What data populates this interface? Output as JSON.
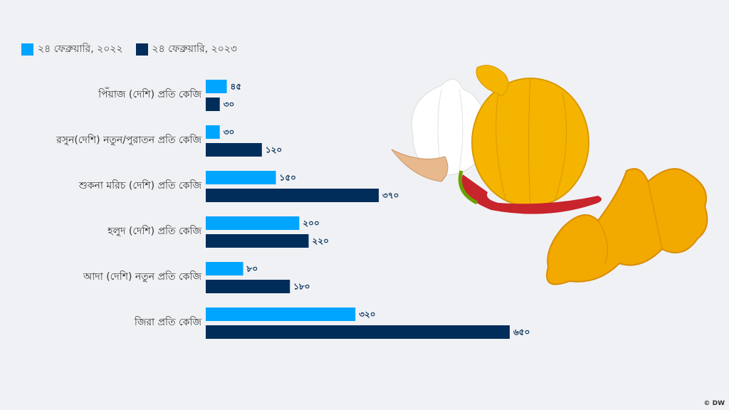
{
  "chart_data": {
    "type": "bar",
    "orientation": "horizontal",
    "categories": [
      "পিঁয়াজ (দেশি) প্রতি কেজি",
      "রসুন(দেশি) নতুন/পুরাতন প্রতি কেজি",
      "শুকনা মরিচ (দেশি) প্রতি কেজি",
      "হলুদ (দেশি) প্রতি কেজি",
      "আদা (দেশি) নতুন প্রতি কেজি",
      "জিরা প্রতি কেজি"
    ],
    "series": [
      {
        "name": "২৪ ফেব্রুয়ারি, ২০২২",
        "color": "#00a5ff",
        "values": [
          45,
          30,
          150,
          200,
          80,
          320
        ],
        "labels": [
          "৪৫",
          "৩০",
          "১৫০",
          "২০০",
          "৮০",
          "৩২০"
        ]
      },
      {
        "name": "২৪ ফেব্রুয়ারি, ২০২৩",
        "color": "#002d5a",
        "values": [
          30,
          120,
          370,
          220,
          180,
          650
        ],
        "labels": [
          "৩০",
          "১২০",
          "৩৭০",
          "২২০",
          "১৮০",
          "৬৫০"
        ]
      }
    ],
    "xlim": [
      0,
      650
    ],
    "grid": false,
    "legend": "top-left"
  },
  "credit": "© DW"
}
